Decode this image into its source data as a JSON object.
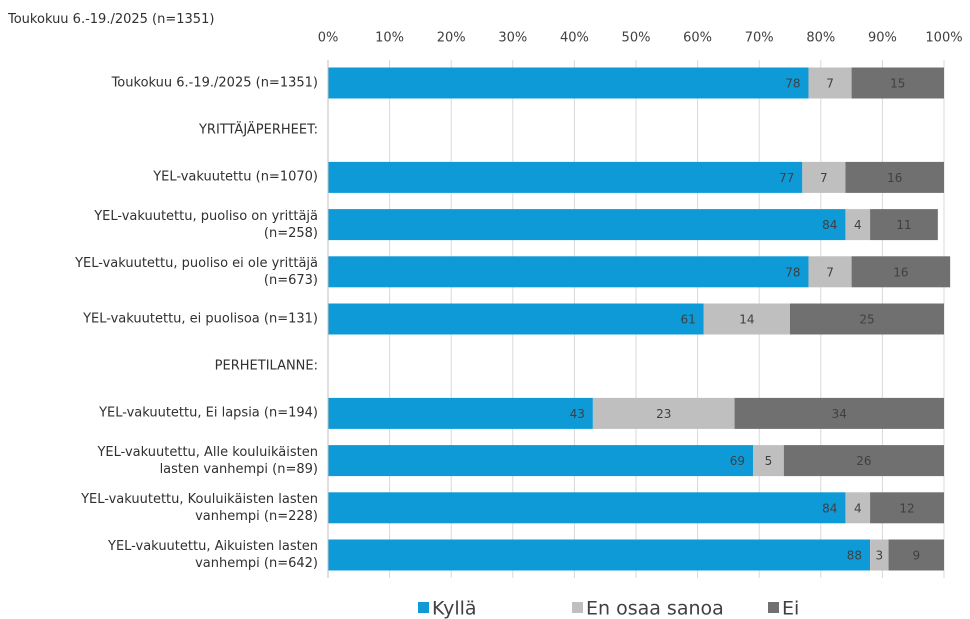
{
  "chart_data": {
    "type": "stacked-bar-horizontal",
    "title": "Toukokuu 6.-19./2025 (n=1351)",
    "categories": [
      "Toukokuu 6.-19./2025 (n=1351)",
      "YRITTÄJÄPERHEET:",
      "YEL-vakuutettu (n=1070)",
      "YEL-vakuutettu, puoliso on yrittäjä\n(n=258)",
      "YEL-vakuutettu, puoliso ei ole yrittäjä\n(n=673)",
      "YEL-vakuutettu, ei puolisoa (n=131)",
      "PERHETILANNE:",
      "YEL-vakuutettu, Ei lapsia (n=194)",
      "YEL-vakuutettu, Alle kouluikäisten\nlasten vanhempi (n=89)",
      "YEL-vakuutettu, Kouluikäisten lasten\nvanhempi (n=228)",
      "YEL-vakuutettu, Aikuisten lasten\nvanhempi (n=642)"
    ],
    "series": [
      {
        "name": "Kyllä",
        "color": "#0e9ad7",
        "values": [
          78,
          null,
          77,
          84,
          78,
          61,
          null,
          43,
          69,
          84,
          88
        ]
      },
      {
        "name": "En osaa sanoa",
        "color": "#bfbfbf",
        "values": [
          7,
          null,
          7,
          4,
          7,
          14,
          null,
          23,
          5,
          4,
          3
        ]
      },
      {
        "name": "Ei",
        "color": "#707070",
        "values": [
          15,
          null,
          16,
          11,
          16,
          25,
          null,
          34,
          26,
          12,
          9
        ]
      }
    ],
    "xlim": [
      0,
      100
    ],
    "xticks": [
      {
        "value": 0,
        "label": "0%"
      },
      {
        "value": 10,
        "label": "10%"
      },
      {
        "value": 20,
        "label": "20%"
      },
      {
        "value": 30,
        "label": "30%"
      },
      {
        "value": 40,
        "label": "40%"
      },
      {
        "value": 50,
        "label": "50%"
      },
      {
        "value": 60,
        "label": "60%"
      },
      {
        "value": 70,
        "label": "70%"
      },
      {
        "value": 80,
        "label": "80%"
      },
      {
        "value": 90,
        "label": "90%"
      },
      {
        "value": 100,
        "label": "100%"
      }
    ],
    "grid": true,
    "legend": "bottom"
  }
}
